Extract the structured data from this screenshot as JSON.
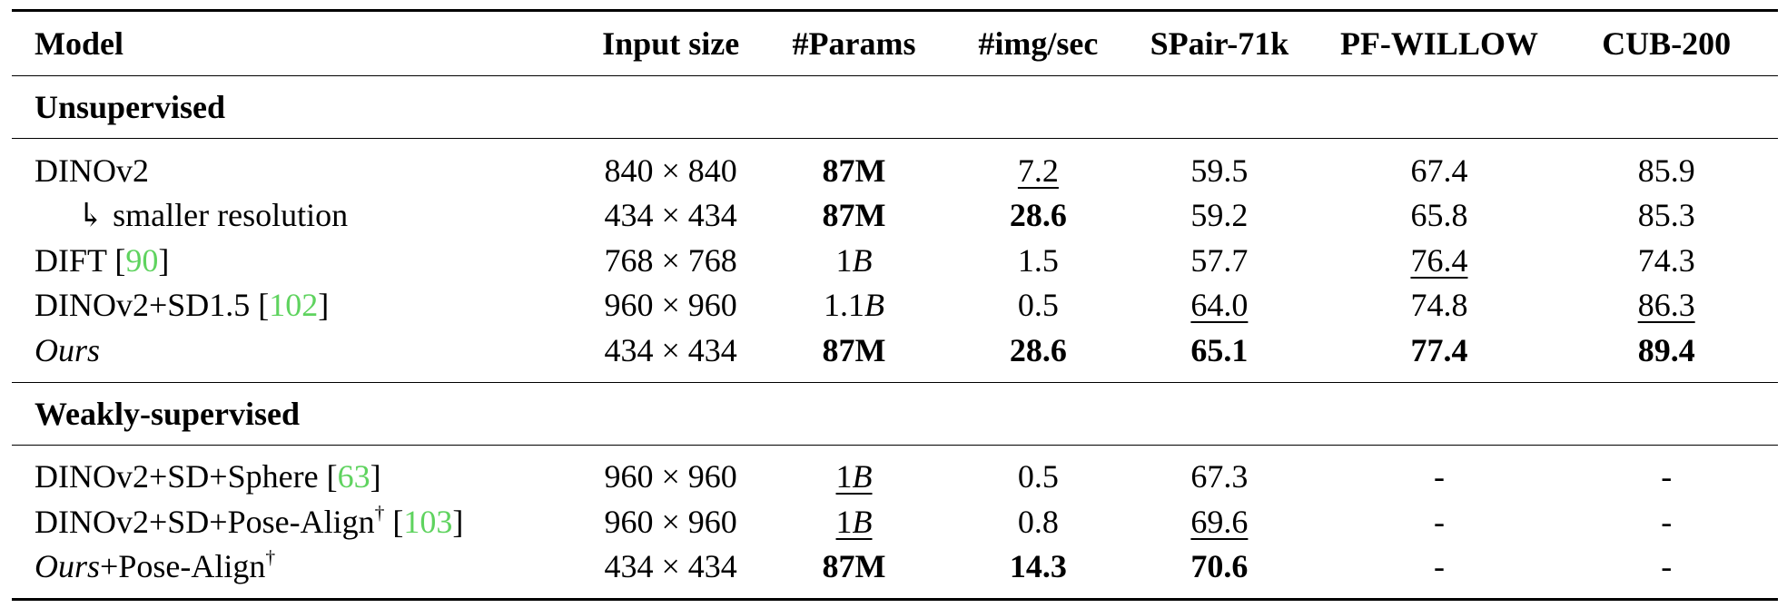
{
  "table": {
    "headers": {
      "model": "Model",
      "input_size": "Input size",
      "params": "#Params",
      "img_per_sec": "#img/sec",
      "spair": "SPair-71k",
      "pfwillow": "PF-WILLOW",
      "cub": "CUB-200"
    },
    "sections": [
      {
        "title": "Unsupervised",
        "rows": [
          {
            "model": "DINOv2",
            "input_size": "840 × 840",
            "params": "87M",
            "img_per_sec": "7.2",
            "spair": "59.5",
            "pfwillow": "67.4",
            "cub": "85.9"
          },
          {
            "arrow": "↳",
            "model": "smaller resolution",
            "input_size": "434 × 434",
            "params": "87M",
            "img_per_sec": "28.6",
            "spair": "59.2",
            "pfwillow": "65.8",
            "cub": "85.3"
          },
          {
            "model": "DIFT [",
            "cite": "90",
            "model_end": "]",
            "input_size": "768 × 768",
            "params_num": "1",
            "params_unit": "B",
            "img_per_sec": "1.5",
            "spair": "57.7",
            "pfwillow": "76.4",
            "cub": "74.3"
          },
          {
            "model": "DINOv2+SD1.5 [",
            "cite": "102",
            "model_end": "]",
            "input_size": "960 × 960",
            "params_num": "1.1",
            "params_unit": "B",
            "img_per_sec": "0.5",
            "spair": "64.0",
            "pfwillow": "74.8",
            "cub": "86.3"
          },
          {
            "model": "Ours",
            "input_size": "434 × 434",
            "params": "87M",
            "img_per_sec": "28.6",
            "spair": "65.1",
            "pfwillow": "77.4",
            "cub": "89.4"
          }
        ]
      },
      {
        "title": "Weakly-supervised",
        "rows": [
          {
            "model": "DINOv2+SD+Sphere [",
            "cite": "63",
            "model_end": "]",
            "input_size": "960 × 960",
            "params_num": "1",
            "params_unit": "B",
            "img_per_sec": "0.5",
            "spair": "67.3",
            "pfwillow": "-",
            "cub": "-"
          },
          {
            "model": "DINOv2+SD+Pose-Align",
            "dagger": "†",
            "model_mid": " [",
            "cite": "103",
            "model_end": "]",
            "input_size": "960 × 960",
            "params_num": "1",
            "params_unit": "B",
            "img_per_sec": "0.8",
            "spair": "69.6",
            "pfwillow": "-",
            "cub": "-"
          },
          {
            "model_italic": "Ours",
            "model": "+Pose-Align",
            "dagger": "†",
            "input_size": "434 × 434",
            "params": "87M",
            "img_per_sec": "14.3",
            "spair": "70.6",
            "pfwillow": "-",
            "cub": "-"
          }
        ]
      }
    ]
  }
}
